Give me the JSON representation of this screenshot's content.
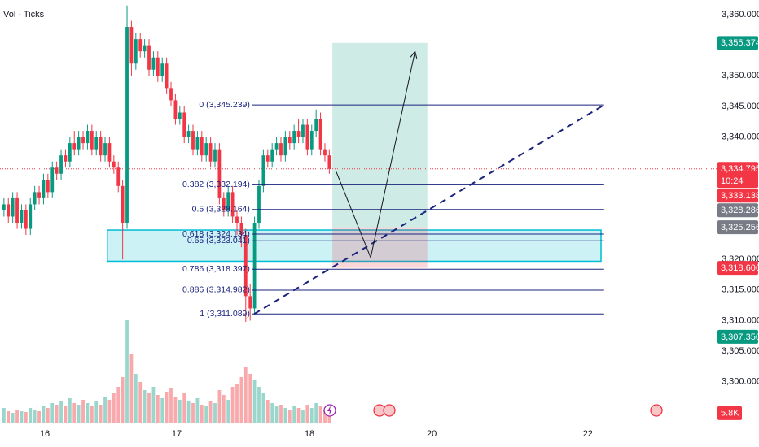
{
  "chart_data": {
    "type": "candlestick",
    "volume_label": "Vol · Ticks",
    "up_color": "#089981",
    "down_color": "#f23645",
    "volume_up_color": "#9ad6cc",
    "volume_down_color": "#f7a9ac",
    "xlim": [
      -0.9,
      162.1
    ],
    "xticks": [
      {
        "value": 9.3,
        "label": "16"
      },
      {
        "value": 39.3,
        "label": "17"
      },
      {
        "value": 69.5,
        "label": "18"
      },
      {
        "value": 97.3,
        "label": "20"
      },
      {
        "value": 132.8,
        "label": "22"
      }
    ],
    "ylim": [
      3293.33,
      3362.39
    ],
    "yticks": [
      {
        "value": 3360,
        "label": "3,360.000"
      },
      {
        "value": 3350,
        "label": "3,350.000"
      },
      {
        "value": 3345,
        "label": "3,345.000"
      },
      {
        "value": 3340,
        "label": "3,340.000"
      },
      {
        "value": 3320,
        "label": "3,320.000"
      },
      {
        "value": 3315,
        "label": "3,315.000"
      },
      {
        "value": 3310,
        "label": "3,310.000"
      },
      {
        "value": 3305,
        "label": "3,305.000"
      },
      {
        "value": 3300,
        "label": "3,300.000"
      }
    ],
    "volume_ylim": [
      0,
      65000
    ],
    "x": [
      0,
      1,
      2,
      3,
      4,
      5,
      6,
      7,
      8,
      9,
      10,
      11,
      12,
      13,
      14,
      15,
      16,
      17,
      18,
      19,
      20,
      21,
      22,
      23,
      24,
      25,
      26,
      27,
      28,
      29,
      30,
      31,
      32,
      33,
      34,
      35,
      36,
      37,
      38,
      39,
      40,
      41,
      42,
      43,
      44,
      45,
      46,
      47,
      48,
      49,
      50,
      51,
      52,
      53,
      54,
      55,
      56,
      57,
      58,
      59,
      60,
      61,
      62,
      63,
      64,
      65,
      66,
      67,
      68,
      69,
      70,
      71,
      72,
      73,
      74
    ],
    "open": [
      3328,
      3329,
      3327,
      3330,
      3326,
      3328,
      3325,
      3329,
      3331,
      3330,
      3333,
      3331,
      3335,
      3334,
      3337,
      3336,
      3339,
      3338,
      3340,
      3339,
      3341,
      3338,
      3340,
      3337,
      3339,
      3336,
      3335,
      3332,
      3326,
      3358,
      3352,
      3356,
      3354,
      3355,
      3351,
      3353,
      3350,
      3352,
      3348,
      3346,
      3343,
      3344,
      3340,
      3341,
      3338,
      3340,
      3337,
      3339,
      3336,
      3338,
      3330,
      3328,
      3331,
      3327,
      3326,
      3324,
      3314,
      3312,
      3326,
      3332,
      3337,
      3336,
      3338,
      3339,
      3337,
      3340,
      3339,
      3341,
      3340,
      3342,
      3338,
      3341,
      3343,
      3338,
      3337
    ],
    "high": [
      3330,
      3330,
      3331,
      3331,
      3329,
      3329,
      3330,
      3332,
      3332,
      3334,
      3334,
      3336,
      3336,
      3338,
      3338,
      3340,
      3341,
      3341,
      3341,
      3342,
      3342,
      3341,
      3341,
      3340,
      3340,
      3337,
      3336,
      3333,
      3361.5,
      3359,
      3357,
      3357,
      3356,
      3356,
      3354,
      3354,
      3353,
      3353,
      3349,
      3347,
      3345,
      3345,
      3342,
      3342,
      3341,
      3341,
      3340,
      3340,
      3339,
      3339,
      3331,
      3332,
      3332,
      3328,
      3327,
      3325,
      3316,
      3327,
      3333,
      3338,
      3338,
      3339,
      3340,
      3340,
      3341,
      3341,
      3342,
      3343,
      3343,
      3343,
      3342,
      3344.5,
      3344,
      3339,
      3338
    ],
    "low": [
      3327,
      3326,
      3326,
      3325,
      3325,
      3324,
      3324,
      3328,
      3329,
      3329,
      3330,
      3330,
      3333,
      3333,
      3335,
      3335,
      3337,
      3337,
      3338,
      3338,
      3337,
      3337,
      3336,
      3336,
      3335,
      3334,
      3331,
      3320,
      3325,
      3350,
      3351,
      3353,
      3353,
      3350,
      3350,
      3349,
      3349,
      3347,
      3345,
      3342,
      3342,
      3339,
      3339,
      3337,
      3337,
      3336,
      3336,
      3335,
      3335,
      3329,
      3327,
      3327,
      3326,
      3324,
      3322,
      3309.8,
      3310,
      3311,
      3325,
      3331,
      3335,
      3335,
      3337,
      3336,
      3336,
      3338,
      3338,
      3339,
      3339,
      3337,
      3337,
      3340,
      3337,
      3336,
      3334
    ],
    "close": [
      3329,
      3327,
      3330,
      3326,
      3328,
      3325,
      3329,
      3331,
      3330,
      3333,
      3331,
      3335,
      3334,
      3337,
      3336,
      3339,
      3338,
      3340,
      3339,
      3341,
      3338,
      3340,
      3337,
      3339,
      3336,
      3335,
      3332,
      3326,
      3358,
      3352,
      3356,
      3354,
      3355,
      3351,
      3353,
      3350,
      3352,
      3348,
      3346,
      3343,
      3344,
      3340,
      3341,
      3338,
      3340,
      3337,
      3339,
      3336,
      3338,
      3330,
      3328,
      3331,
      3327,
      3326,
      3324,
      3314,
      3312,
      3326,
      3332,
      3337,
      3336,
      3338,
      3339,
      3337,
      3340,
      3339,
      3341,
      3340,
      3342,
      3338,
      3341,
      3343,
      3338,
      3337,
      3334.795
    ],
    "volume": [
      9000,
      7000,
      6000,
      8000,
      7000,
      6500,
      9000,
      8000,
      7000,
      10000,
      9000,
      12000,
      11000,
      13000,
      10000,
      15000,
      12000,
      11000,
      14000,
      12000,
      10000,
      13000,
      11000,
      16000,
      14000,
      18000,
      22000,
      28000,
      63000,
      42000,
      30000,
      25000,
      20000,
      18000,
      22000,
      17000,
      15000,
      19000,
      21000,
      16000,
      14000,
      18000,
      13000,
      12000,
      15000,
      11000,
      10000,
      13000,
      12000,
      20000,
      17000,
      14000,
      22000,
      24000,
      28000,
      34000,
      30000,
      26000,
      22000,
      18000,
      14000,
      12000,
      10000,
      11000,
      9000,
      8000,
      10000,
      9000,
      8000,
      11000,
      9000,
      12000,
      10000,
      8000,
      5800
    ],
    "current_price": 3334.795,
    "countdown": "10:24",
    "price_tags": [
      {
        "value": 3355.374,
        "label": "3,355.374",
        "color": "#089981"
      },
      {
        "value": 3334.795,
        "label": "3,334.795",
        "color": "#f23645"
      },
      {
        "value": 3333.138,
        "label": "3,333.138",
        "color": "#f23645"
      },
      {
        "value": 3328.286,
        "label": "3,328.286",
        "color": "#787b86"
      },
      {
        "value": 3325.256,
        "label": "3,325.256",
        "color": "#787b86"
      },
      {
        "value": 3318.606,
        "label": "3,318.606",
        "color": "#f23645"
      },
      {
        "value": 3307.35,
        "label": "3,307.350",
        "color": "#089981"
      }
    ],
    "volume_tag": {
      "value": 5800,
      "label": "5.8K",
      "color": "#f23645"
    },
    "fib": {
      "x": [
        56.5,
        136.5
      ],
      "color": "#1a237e",
      "levels": [
        {
          "level": 0,
          "price": 3345.239,
          "label": "0 (3,345.239)"
        },
        {
          "level": 0.382,
          "price": 3332.194,
          "label": "0.382 (3,332.194)"
        },
        {
          "level": 0.5,
          "price": 3328.164,
          "label": "0.5 (3,328.164)"
        },
        {
          "level": 0.618,
          "price": 3324.134,
          "label": "0.618 (3,324.134)"
        },
        {
          "level": 0.65,
          "price": 3323.041,
          "label": "0.65 (3,323.041)"
        },
        {
          "level": 0.786,
          "price": 3318.397,
          "label": "0.786 (3,318.397)"
        },
        {
          "level": 0.886,
          "price": 3314.982,
          "label": "0.886 (3,314.982)"
        },
        {
          "level": 1,
          "price": 3311.089,
          "label": "1 (3,311.089)"
        }
      ]
    },
    "zone": {
      "x": [
        23.5,
        135.8
      ],
      "y": [
        3319.7,
        3324.8
      ]
    },
    "position": {
      "x": [
        74.7,
        96.3
      ],
      "entry": 3325.256,
      "target": 3355.374,
      "stop": 3318.606
    },
    "trendline": {
      "x": [
        56.9,
        136.5
      ],
      "y": [
        3311.089,
        3345.239
      ]
    },
    "arrow": {
      "x": [
        75.6,
        83.4,
        93.5
      ],
      "y": [
        3334.3,
        3320.3,
        3354.0
      ]
    }
  }
}
